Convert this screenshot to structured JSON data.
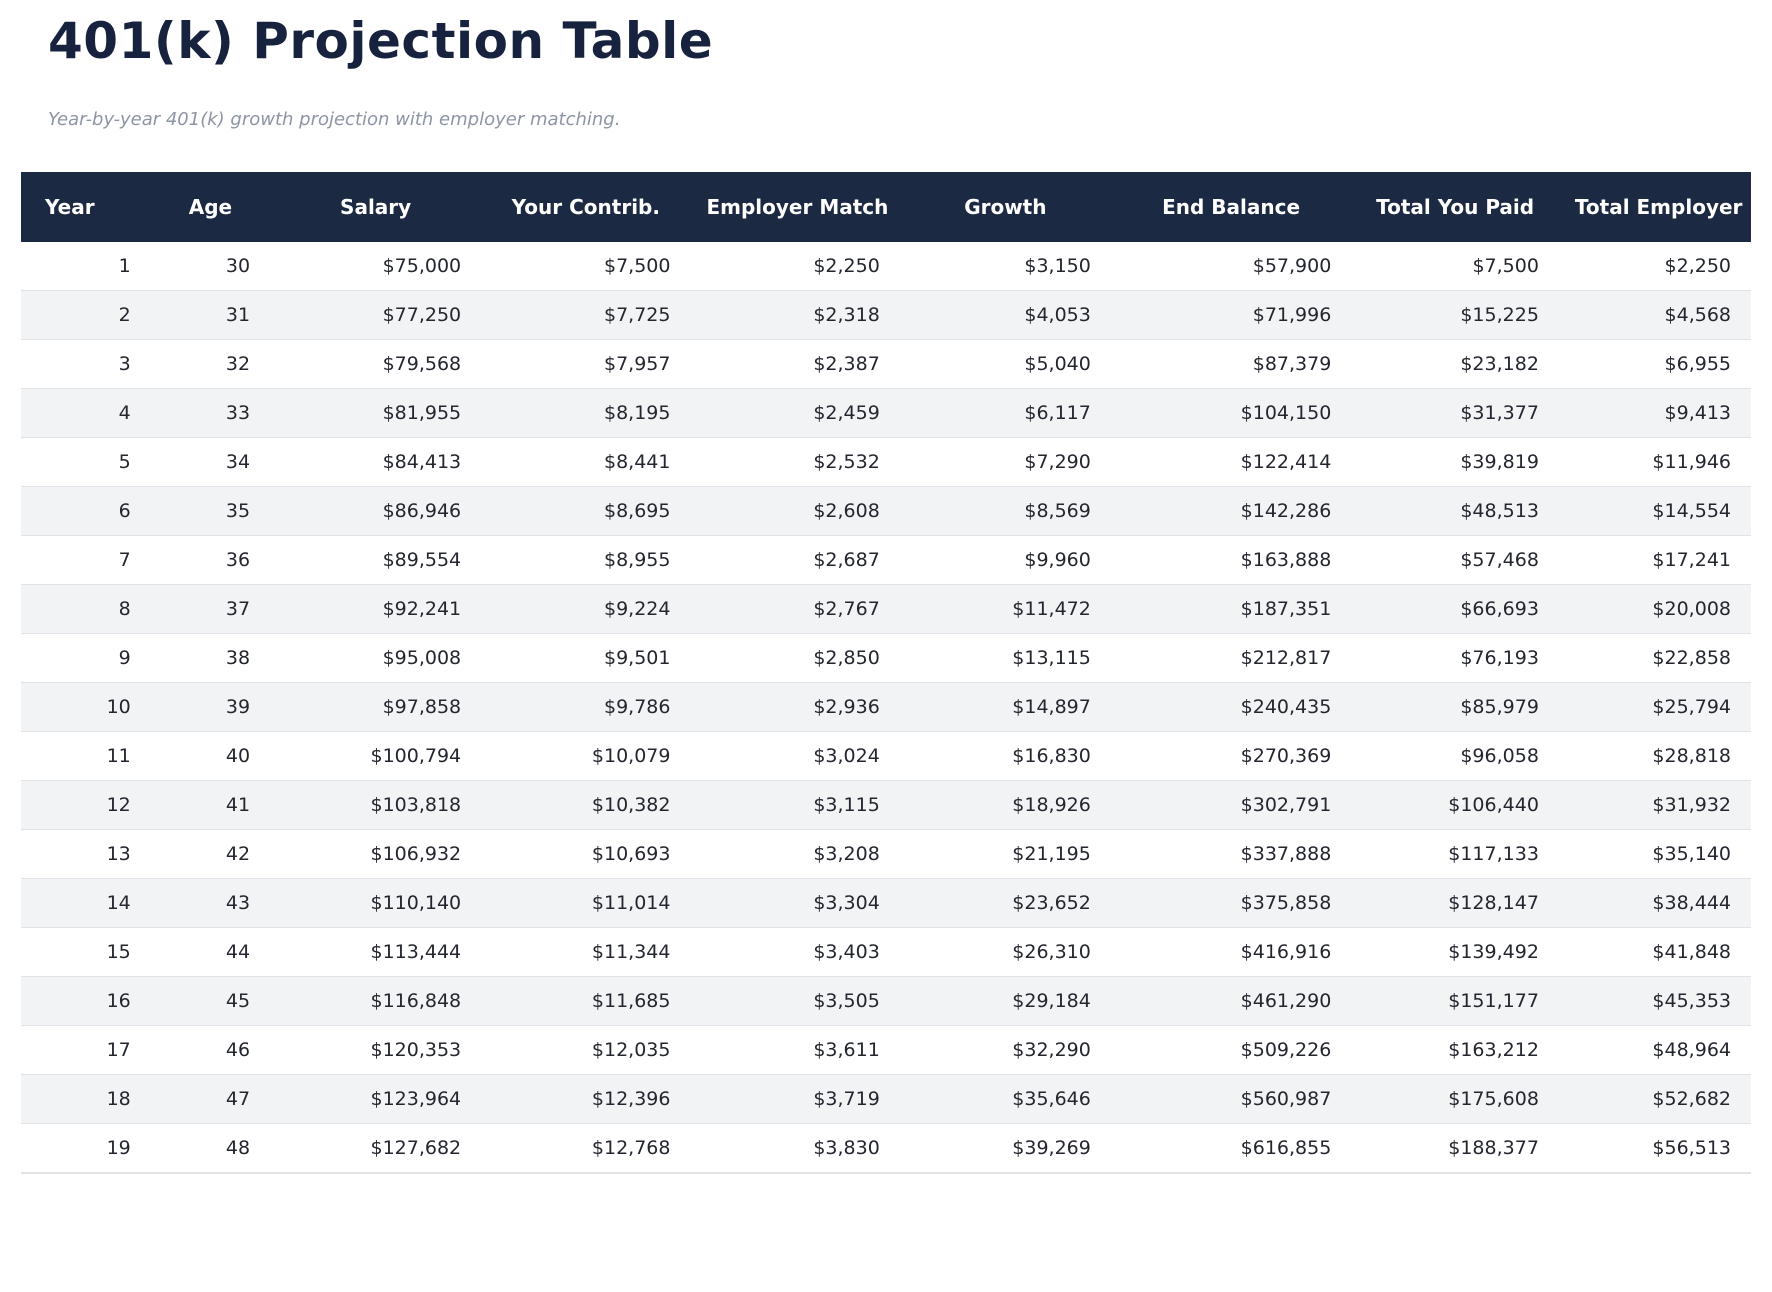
{
  "page": {
    "title": "401(k) Projection Table",
    "subtitle": "Year-by-year 401(k) growth projection with employer matching."
  },
  "colors": {
    "header_bg": "#1b2942",
    "header_text": "#ffffff",
    "title_text": "#16223e",
    "subtitle_text": "#8d95a4",
    "row_alt_bg": "#f1f3f5",
    "row_border": "#e0e3e8",
    "cell_text": "#23262e"
  },
  "chart_data": {
    "type": "table",
    "title": "401(k) Projection Table",
    "subtitle": "Year-by-year 401(k) growth projection with employer matching.",
    "columns": [
      "Year",
      "Age",
      "Salary",
      "Your Contrib.",
      "Employer Match",
      "Growth",
      "End Balance",
      "Total You Paid",
      "Total Employer"
    ],
    "rows": [
      [
        "1",
        "30",
        "$75,000",
        "$7,500",
        "$2,250",
        "$3,150",
        "$57,900",
        "$7,500",
        "$2,250"
      ],
      [
        "2",
        "31",
        "$77,250",
        "$7,725",
        "$2,318",
        "$4,053",
        "$71,996",
        "$15,225",
        "$4,568"
      ],
      [
        "3",
        "32",
        "$79,568",
        "$7,957",
        "$2,387",
        "$5,040",
        "$87,379",
        "$23,182",
        "$6,955"
      ],
      [
        "4",
        "33",
        "$81,955",
        "$8,195",
        "$2,459",
        "$6,117",
        "$104,150",
        "$31,377",
        "$9,413"
      ],
      [
        "5",
        "34",
        "$84,413",
        "$8,441",
        "$2,532",
        "$7,290",
        "$122,414",
        "$39,819",
        "$11,946"
      ],
      [
        "6",
        "35",
        "$86,946",
        "$8,695",
        "$2,608",
        "$8,569",
        "$142,286",
        "$48,513",
        "$14,554"
      ],
      [
        "7",
        "36",
        "$89,554",
        "$8,955",
        "$2,687",
        "$9,960",
        "$163,888",
        "$57,468",
        "$17,241"
      ],
      [
        "8",
        "37",
        "$92,241",
        "$9,224",
        "$2,767",
        "$11,472",
        "$187,351",
        "$66,693",
        "$20,008"
      ],
      [
        "9",
        "38",
        "$95,008",
        "$9,501",
        "$2,850",
        "$13,115",
        "$212,817",
        "$76,193",
        "$22,858"
      ],
      [
        "10",
        "39",
        "$97,858",
        "$9,786",
        "$2,936",
        "$14,897",
        "$240,435",
        "$85,979",
        "$25,794"
      ],
      [
        "11",
        "40",
        "$100,794",
        "$10,079",
        "$3,024",
        "$16,830",
        "$270,369",
        "$96,058",
        "$28,818"
      ],
      [
        "12",
        "41",
        "$103,818",
        "$10,382",
        "$3,115",
        "$18,926",
        "$302,791",
        "$106,440",
        "$31,932"
      ],
      [
        "13",
        "42",
        "$106,932",
        "$10,693",
        "$3,208",
        "$21,195",
        "$337,888",
        "$117,133",
        "$35,140"
      ],
      [
        "14",
        "43",
        "$110,140",
        "$11,014",
        "$3,304",
        "$23,652",
        "$375,858",
        "$128,147",
        "$38,444"
      ],
      [
        "15",
        "44",
        "$113,444",
        "$11,344",
        "$3,403",
        "$26,310",
        "$416,916",
        "$139,492",
        "$41,848"
      ],
      [
        "16",
        "45",
        "$116,848",
        "$11,685",
        "$3,505",
        "$29,184",
        "$461,290",
        "$151,177",
        "$45,353"
      ],
      [
        "17",
        "46",
        "$120,353",
        "$12,035",
        "$3,611",
        "$32,290",
        "$509,226",
        "$163,212",
        "$48,964"
      ],
      [
        "18",
        "47",
        "$123,964",
        "$12,396",
        "$3,719",
        "$35,646",
        "$560,987",
        "$175,608",
        "$52,682"
      ],
      [
        "19",
        "48",
        "$127,682",
        "$12,768",
        "$3,830",
        "$39,269",
        "$616,855",
        "$188,377",
        "$56,513"
      ]
    ]
  }
}
